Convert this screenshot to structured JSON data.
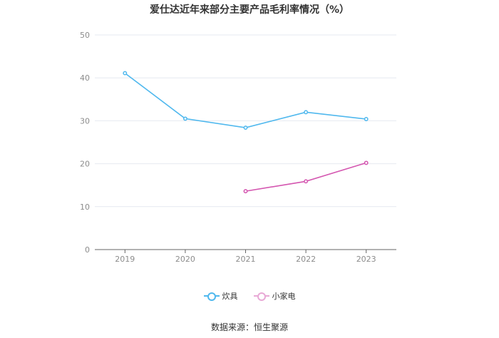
{
  "title": "爱仕达近年来部分主要产品毛利率情况（%）",
  "source": "数据来源：恒生聚源",
  "legend": [
    {
      "label": "炊具",
      "color": "#4fb8ee"
    },
    {
      "label": "小家电",
      "color": "#d456b0"
    }
  ],
  "chart_data": {
    "type": "line",
    "title": "爱仕达近年来部分主要产品毛利率情况（%）",
    "xlabel": "",
    "ylabel": "",
    "categories": [
      "2019",
      "2020",
      "2021",
      "2022",
      "2023"
    ],
    "ylim": [
      0,
      50
    ],
    "yticks": [
      0,
      10,
      20,
      30,
      40,
      50
    ],
    "grid": true,
    "legend_position": "bottom",
    "series": [
      {
        "name": "炊具",
        "color": "#4fb8ee",
        "values": [
          41.1,
          30.5,
          28.4,
          32.0,
          30.4
        ]
      },
      {
        "name": "小家电",
        "color": "#d456b0",
        "values": [
          null,
          null,
          13.6,
          15.9,
          20.2
        ]
      }
    ]
  }
}
